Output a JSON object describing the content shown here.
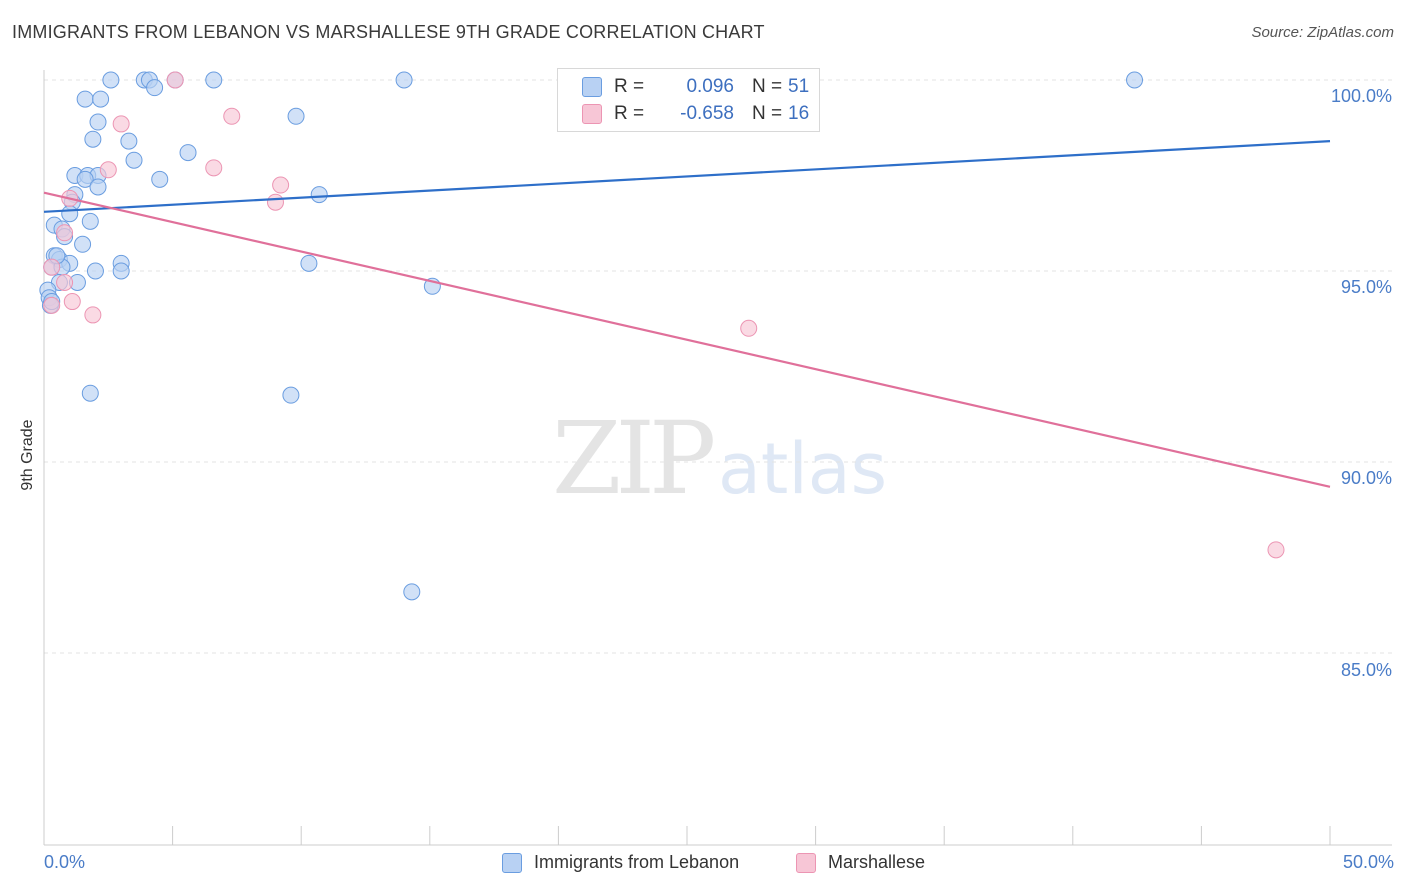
{
  "header": {
    "title": "IMMIGRANTS FROM LEBANON VS MARSHALLESE 9TH GRADE CORRELATION CHART",
    "source": "Source: ZipAtlas.com"
  },
  "watermark": {
    "zip": "ZIP",
    "atlas": "atlas"
  },
  "legend": {
    "rows": [
      {
        "r_label": "R =",
        "r_value": "0.096",
        "n_label": "N =",
        "n_value": "51"
      },
      {
        "r_label": "R =",
        "r_value": "-0.658",
        "n_label": "N =",
        "n_value": "16"
      }
    ]
  },
  "bottom_legend": {
    "series1": "Immigrants from Lebanon",
    "series2": "Marshallese"
  },
  "colors": {
    "blue_fill": "#b8d1f3",
    "blue_stroke": "#6a9de0",
    "blue_line": "#2e6fc9",
    "pink_fill": "#f7c6d6",
    "pink_stroke": "#ec95b3",
    "pink_line": "#e0709a"
  },
  "chart_data": {
    "type": "scatter",
    "title": "IMMIGRANTS FROM LEBANON VS MARSHALLESE 9TH GRADE CORRELATION CHART",
    "xlabel": "",
    "ylabel": "9th Grade",
    "xlim": [
      0,
      50
    ],
    "ylim": [
      80.5,
      101
    ],
    "x_tick_labels": [
      "0.0%",
      "50.0%"
    ],
    "y_ticks": [
      85,
      90,
      95,
      100
    ],
    "y_tick_labels": [
      "85.0%",
      "90.0%",
      "95.0%",
      "100.0%"
    ],
    "grid": true,
    "series": [
      {
        "name": "Immigrants from Lebanon",
        "R": 0.096,
        "N": 51,
        "trend": {
          "x": [
            0,
            50
          ],
          "y": [
            96.55,
            98.4
          ]
        },
        "points": [
          [
            2.6,
            100
          ],
          [
            3.9,
            100
          ],
          [
            4.1,
            100
          ],
          [
            4.3,
            99.8
          ],
          [
            5.1,
            100
          ],
          [
            6.6,
            100
          ],
          [
            14.0,
            100
          ],
          [
            42.4,
            100
          ],
          [
            1.6,
            99.5
          ],
          [
            2.2,
            99.5
          ],
          [
            9.8,
            99.05
          ],
          [
            2.1,
            98.9
          ],
          [
            1.9,
            98.45
          ],
          [
            3.3,
            98.4
          ],
          [
            5.6,
            98.1
          ],
          [
            3.5,
            97.9
          ],
          [
            1.2,
            97.5
          ],
          [
            1.7,
            97.5
          ],
          [
            2.1,
            97.5
          ],
          [
            1.6,
            97.4
          ],
          [
            4.5,
            97.4
          ],
          [
            2.1,
            97.2
          ],
          [
            1.2,
            97.0
          ],
          [
            10.7,
            97.0
          ],
          [
            1.1,
            96.8
          ],
          [
            1.0,
            96.5
          ],
          [
            1.8,
            96.3
          ],
          [
            0.4,
            96.2
          ],
          [
            0.7,
            96.1
          ],
          [
            0.8,
            95.9
          ],
          [
            1.5,
            95.7
          ],
          [
            0.4,
            95.4
          ],
          [
            0.6,
            95.3
          ],
          [
            1.0,
            95.2
          ],
          [
            3.0,
            95.2
          ],
          [
            10.3,
            95.2
          ],
          [
            0.3,
            95.1
          ],
          [
            0.7,
            95.1
          ],
          [
            2.0,
            95.0
          ],
          [
            3.0,
            95.0
          ],
          [
            0.6,
            94.7
          ],
          [
            1.3,
            94.7
          ],
          [
            15.1,
            94.6
          ],
          [
            0.15,
            94.5
          ],
          [
            0.2,
            94.3
          ],
          [
            0.25,
            94.1
          ],
          [
            0.3,
            94.2
          ],
          [
            1.8,
            91.8
          ],
          [
            9.6,
            91.75
          ],
          [
            14.3,
            86.6
          ],
          [
            0.5,
            95.4
          ]
        ]
      },
      {
        "name": "Marshallese",
        "R": -0.658,
        "N": 16,
        "trend": {
          "x": [
            0,
            50
          ],
          "y": [
            97.05,
            89.35
          ]
        },
        "points": [
          [
            5.1,
            100
          ],
          [
            7.3,
            99.05
          ],
          [
            3.0,
            98.85
          ],
          [
            2.5,
            97.65
          ],
          [
            6.6,
            97.7
          ],
          [
            9.2,
            97.25
          ],
          [
            9.0,
            96.8
          ],
          [
            1.0,
            96.9
          ],
          [
            0.8,
            96.0
          ],
          [
            0.3,
            95.1
          ],
          [
            0.8,
            94.7
          ],
          [
            1.1,
            94.2
          ],
          [
            0.3,
            94.1
          ],
          [
            1.9,
            93.85
          ],
          [
            27.4,
            93.5
          ],
          [
            47.9,
            87.7
          ]
        ]
      }
    ]
  }
}
